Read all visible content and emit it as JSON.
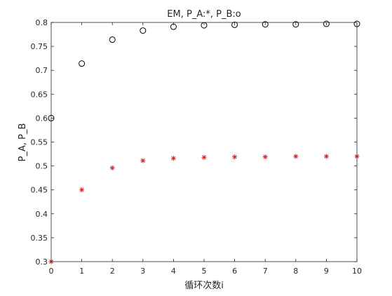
{
  "chart_data": {
    "type": "scatter",
    "title": "EM,  P_A:*,  P_B:o",
    "xlabel": "循环次数i",
    "ylabel": "P_A, P_B",
    "xlim": [
      0,
      10
    ],
    "ylim": [
      0.3,
      0.8
    ],
    "xticks": [
      0,
      1,
      2,
      3,
      4,
      5,
      6,
      7,
      8,
      9,
      10
    ],
    "yticks": [
      0.3,
      0.35,
      0.4,
      0.45,
      0.5,
      0.55,
      0.6,
      0.65,
      0.7,
      0.75,
      0.8
    ],
    "xtick_labels": [
      "0",
      "1",
      "2",
      "3",
      "4",
      "5",
      "6",
      "7",
      "8",
      "9",
      "10"
    ],
    "ytick_labels": [
      "0.3",
      "0.35",
      "0.4",
      "0.45",
      "0.5",
      "0.55",
      "0.6",
      "0.65",
      "0.7",
      "0.75",
      "0.8"
    ],
    "grid": false,
    "box": true,
    "series": [
      {
        "marker": "asterisk",
        "color": "#d62728",
        "x": [
          0,
          1,
          2,
          3,
          4,
          5,
          6,
          7,
          8,
          9,
          10
        ],
        "y": [
          0.3,
          0.45,
          0.496,
          0.511,
          0.516,
          0.518,
          0.519,
          0.519,
          0.52,
          0.52,
          0.52
        ]
      },
      {
        "marker": "circle",
        "color": "#000000",
        "x": [
          0,
          1,
          2,
          3,
          4,
          5,
          6,
          7,
          8,
          9,
          10
        ],
        "y": [
          0.6,
          0.714,
          0.764,
          0.783,
          0.791,
          0.794,
          0.795,
          0.796,
          0.796,
          0.797,
          0.797
        ]
      }
    ]
  }
}
